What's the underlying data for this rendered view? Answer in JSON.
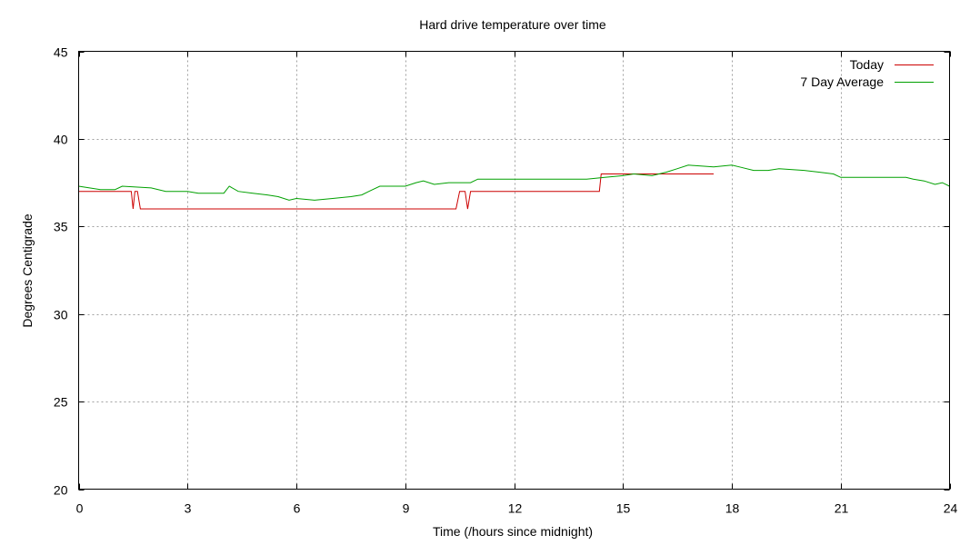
{
  "chart_data": {
    "type": "line",
    "title": "Hard drive temperature over time",
    "xlabel": "Time (/hours since midnight)",
    "ylabel": "Degrees Centigrade",
    "xlim": [
      0,
      24
    ],
    "ylim": [
      20,
      45
    ],
    "xticks": [
      "0",
      "3",
      "6",
      "9",
      "12",
      "15",
      "18",
      "21",
      "24"
    ],
    "yticks": [
      "20",
      "25",
      "30",
      "35",
      "40",
      "45"
    ],
    "grid": true,
    "legend_position": "top-right",
    "series": [
      {
        "name": "Today",
        "color": "#cc0000",
        "points": [
          [
            0,
            37
          ],
          [
            1.45,
            37
          ],
          [
            1.5,
            36
          ],
          [
            1.55,
            37
          ],
          [
            1.62,
            37
          ],
          [
            1.7,
            36
          ],
          [
            10.4,
            36
          ],
          [
            10.5,
            37
          ],
          [
            10.65,
            37
          ],
          [
            10.72,
            36
          ],
          [
            10.8,
            37
          ],
          [
            14.35,
            37
          ],
          [
            14.4,
            38
          ],
          [
            17.5,
            38
          ]
        ]
      },
      {
        "name": "7 Day Average",
        "color": "#00a000",
        "points": [
          [
            0,
            37.3
          ],
          [
            0.3,
            37.2
          ],
          [
            0.6,
            37.1
          ],
          [
            1.0,
            37.1
          ],
          [
            1.2,
            37.3
          ],
          [
            2.0,
            37.2
          ],
          [
            2.4,
            37.0
          ],
          [
            3.0,
            37.0
          ],
          [
            3.3,
            36.9
          ],
          [
            4.0,
            36.9
          ],
          [
            4.15,
            37.3
          ],
          [
            4.4,
            37.0
          ],
          [
            4.8,
            36.9
          ],
          [
            5.2,
            36.8
          ],
          [
            5.5,
            36.7
          ],
          [
            5.8,
            36.5
          ],
          [
            6.0,
            36.6
          ],
          [
            6.5,
            36.5
          ],
          [
            7.0,
            36.6
          ],
          [
            7.5,
            36.7
          ],
          [
            7.8,
            36.8
          ],
          [
            8.0,
            37.0
          ],
          [
            8.3,
            37.3
          ],
          [
            9.0,
            37.3
          ],
          [
            9.3,
            37.5
          ],
          [
            9.5,
            37.6
          ],
          [
            9.8,
            37.4
          ],
          [
            10.2,
            37.5
          ],
          [
            10.8,
            37.5
          ],
          [
            11.0,
            37.7
          ],
          [
            12.0,
            37.7
          ],
          [
            14.0,
            37.7
          ],
          [
            14.5,
            37.8
          ],
          [
            15.0,
            37.9
          ],
          [
            15.3,
            38.0
          ],
          [
            15.8,
            37.9
          ],
          [
            16.2,
            38.1
          ],
          [
            16.5,
            38.3
          ],
          [
            16.8,
            38.5
          ],
          [
            17.5,
            38.4
          ],
          [
            18.0,
            38.5
          ],
          [
            18.2,
            38.4
          ],
          [
            18.6,
            38.2
          ],
          [
            19.0,
            38.2
          ],
          [
            19.3,
            38.3
          ],
          [
            20.0,
            38.2
          ],
          [
            20.4,
            38.1
          ],
          [
            20.8,
            38.0
          ],
          [
            21.0,
            37.8
          ],
          [
            21.5,
            37.8
          ],
          [
            22.0,
            37.8
          ],
          [
            22.5,
            37.8
          ],
          [
            22.8,
            37.8
          ],
          [
            23.0,
            37.7
          ],
          [
            23.3,
            37.6
          ],
          [
            23.6,
            37.4
          ],
          [
            23.8,
            37.5
          ],
          [
            24.0,
            37.3
          ]
        ]
      }
    ]
  }
}
